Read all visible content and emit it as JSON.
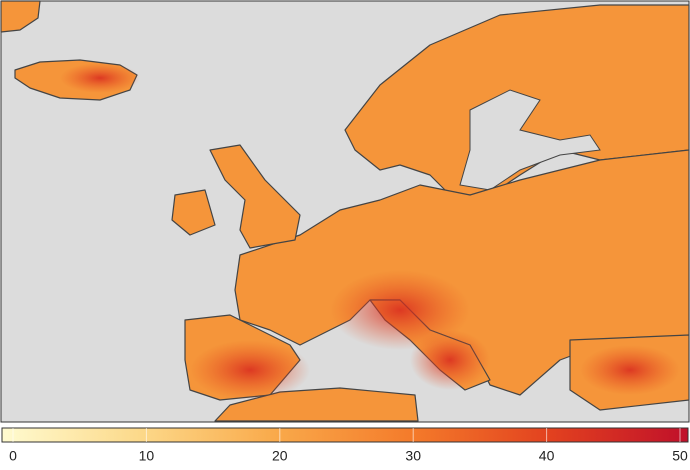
{
  "colorbar": {
    "lim": [
      0,
      50
    ],
    "ticks": [
      0,
      10,
      20,
      30,
      40,
      50
    ],
    "colors": [
      "#fffbd0",
      "#fcd98a",
      "#f9a94a",
      "#f47a2a",
      "#e2411f",
      "#c0102a"
    ]
  }
}
